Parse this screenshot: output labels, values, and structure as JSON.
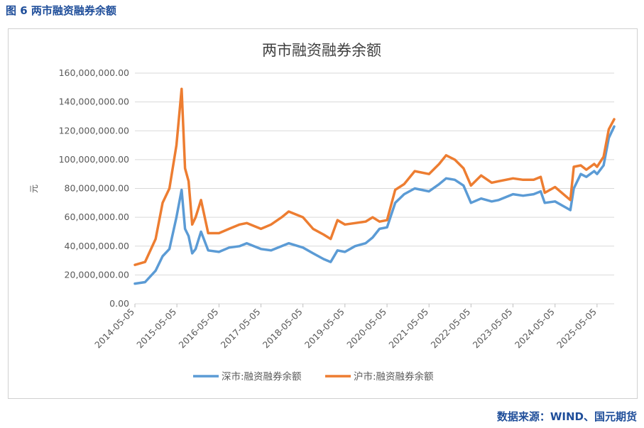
{
  "figure": {
    "caption": "图 6  两市融资融券余额",
    "source": "数据来源：WIND、国元期货"
  },
  "colors": {
    "caption": "#1f4e9a",
    "series_sz": "#5b9bd5",
    "series_sh": "#ed7d31",
    "grid": "#d9d9d9",
    "axis_text": "#595959"
  },
  "chart_data": {
    "type": "line",
    "title": "两市融资融券余额",
    "xlabel": "",
    "ylabel": "元",
    "ylim": [
      0,
      160000000
    ],
    "yticks": [
      "0.00",
      "20,000,000.00",
      "40,000,000.00",
      "60,000,000.00",
      "80,000,000.00",
      "100,000,000.00",
      "120,000,000.00",
      "140,000,000.00",
      "160,000,000.00"
    ],
    "xticks": [
      "2014-05-05",
      "2015-05-05",
      "2016-05-05",
      "2017-05-05",
      "2018-05-05",
      "2019-05-05",
      "2020-05-05",
      "2021-05-05",
      "2022-05-05",
      "2023-05-05",
      "2024-05-05",
      "2025-05-05"
    ],
    "grid": true,
    "legend_position": "bottom",
    "series": [
      {
        "name": "深市:融资融券余额",
        "x": [
          "2014-05-05",
          "2014-08-01",
          "2014-11-01",
          "2015-01-01",
          "2015-03-01",
          "2015-05-01",
          "2015-06-15",
          "2015-07-15",
          "2015-08-15",
          "2015-09-15",
          "2015-10-15",
          "2015-12-01",
          "2016-02-01",
          "2016-05-05",
          "2016-08-01",
          "2016-11-01",
          "2017-01-01",
          "2017-05-05",
          "2017-08-01",
          "2017-11-01",
          "2018-01-01",
          "2018-05-05",
          "2018-08-01",
          "2018-11-01",
          "2019-01-01",
          "2019-03-01",
          "2019-05-05",
          "2019-08-01",
          "2019-11-01",
          "2020-01-01",
          "2020-03-01",
          "2020-05-05",
          "2020-07-15",
          "2020-10-01",
          "2021-01-01",
          "2021-05-05",
          "2021-08-01",
          "2021-10-01",
          "2021-12-15",
          "2022-03-01",
          "2022-05-05",
          "2022-08-01",
          "2022-11-01",
          "2023-01-01",
          "2023-05-05",
          "2023-08-01",
          "2023-11-01",
          "2024-01-01",
          "2024-02-05",
          "2024-05-05",
          "2024-08-01",
          "2024-09-15",
          "2024-10-15",
          "2024-12-15",
          "2025-02-01",
          "2025-04-10",
          "2025-05-05",
          "2025-07-01",
          "2025-08-15",
          "2025-10-01"
        ],
        "values": [
          14000000,
          15000000,
          23000000,
          33000000,
          38000000,
          60000000,
          79000000,
          52000000,
          47000000,
          35000000,
          38000000,
          50000000,
          37000000,
          36000000,
          39000000,
          40000000,
          42000000,
          38000000,
          37000000,
          40000000,
          42000000,
          39000000,
          35000000,
          31000000,
          29000000,
          37000000,
          36000000,
          40000000,
          42000000,
          46000000,
          52000000,
          53000000,
          70000000,
          76000000,
          80000000,
          78000000,
          83000000,
          87000000,
          86000000,
          82000000,
          70000000,
          73000000,
          71000000,
          72000000,
          76000000,
          75000000,
          76000000,
          78000000,
          70000000,
          71000000,
          67000000,
          65000000,
          80000000,
          90000000,
          88000000,
          92000000,
          90000000,
          96000000,
          115000000,
          123000000
        ]
      },
      {
        "name": "沪市:融资融券余额",
        "x": [
          "2014-05-05",
          "2014-08-01",
          "2014-11-01",
          "2015-01-01",
          "2015-03-01",
          "2015-05-01",
          "2015-06-15",
          "2015-07-15",
          "2015-08-15",
          "2015-09-15",
          "2015-10-15",
          "2015-12-01",
          "2016-02-01",
          "2016-05-05",
          "2016-08-01",
          "2016-11-01",
          "2017-01-01",
          "2017-05-05",
          "2017-08-01",
          "2017-11-01",
          "2018-01-01",
          "2018-05-05",
          "2018-08-01",
          "2018-11-01",
          "2019-01-01",
          "2019-03-01",
          "2019-05-05",
          "2019-08-01",
          "2019-11-01",
          "2020-01-01",
          "2020-03-01",
          "2020-05-05",
          "2020-07-15",
          "2020-10-01",
          "2021-01-01",
          "2021-05-05",
          "2021-08-01",
          "2021-10-01",
          "2021-12-15",
          "2022-03-01",
          "2022-05-05",
          "2022-08-01",
          "2022-11-01",
          "2023-01-01",
          "2023-05-05",
          "2023-08-01",
          "2023-11-01",
          "2024-01-01",
          "2024-02-05",
          "2024-05-05",
          "2024-08-01",
          "2024-09-15",
          "2024-10-15",
          "2024-12-15",
          "2025-02-01",
          "2025-04-10",
          "2025-05-05",
          "2025-07-01",
          "2025-08-15",
          "2025-10-01"
        ],
        "values": [
          27000000,
          29000000,
          45000000,
          70000000,
          80000000,
          110000000,
          149000000,
          94000000,
          85000000,
          55000000,
          60000000,
          72000000,
          49000000,
          49000000,
          52000000,
          55000000,
          56000000,
          52000000,
          55000000,
          60000000,
          64000000,
          60000000,
          52000000,
          48000000,
          45000000,
          58000000,
          55000000,
          56000000,
          57000000,
          60000000,
          57000000,
          58000000,
          79000000,
          83000000,
          92000000,
          90000000,
          97000000,
          103000000,
          100000000,
          94000000,
          82000000,
          89000000,
          84000000,
          85000000,
          87000000,
          86000000,
          86000000,
          88000000,
          77000000,
          81000000,
          75000000,
          72000000,
          95000000,
          96000000,
          93000000,
          97000000,
          95000000,
          102000000,
          121000000,
          128000000
        ]
      }
    ]
  }
}
